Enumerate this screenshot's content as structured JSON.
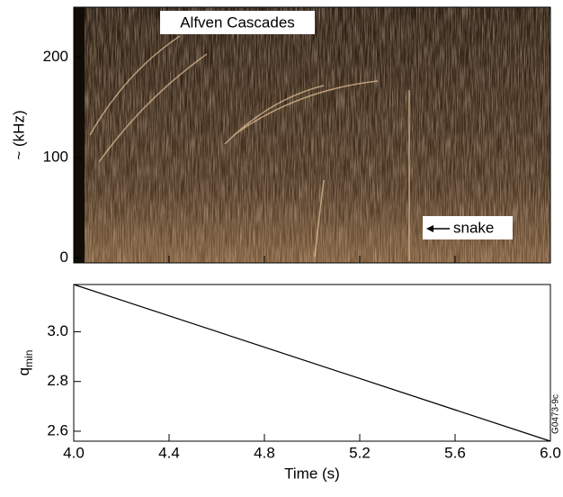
{
  "chart_data": [
    {
      "type": "spectrogram",
      "ylabel": "~ (kHz)",
      "xlim": [
        4.0,
        6.0
      ],
      "ylim": [
        -5,
        250
      ],
      "yticks": [
        0,
        100,
        200
      ],
      "annotations": [
        "Alfven Cascades",
        "snake"
      ]
    },
    {
      "type": "line",
      "xlabel": "Time (s)",
      "ylabel": "q",
      "ylabel_sub": "min",
      "x": [
        4.0,
        6.0
      ],
      "values": [
        3.19,
        2.56
      ],
      "color": "#000000",
      "xlim": [
        4.0,
        6.0
      ],
      "ylim": [
        2.56,
        3.19
      ],
      "xticks": [
        {
          "value": 4,
          "label": "4.0"
        },
        4.4,
        4.8,
        5.2,
        5.6,
        {
          "value": 6,
          "label": "6.0"
        }
      ],
      "yticks": [
        {
          "value": 3,
          "label": "3.0"
        },
        2.8,
        2.6
      ]
    }
  ],
  "figure_id": "G0473-9c"
}
